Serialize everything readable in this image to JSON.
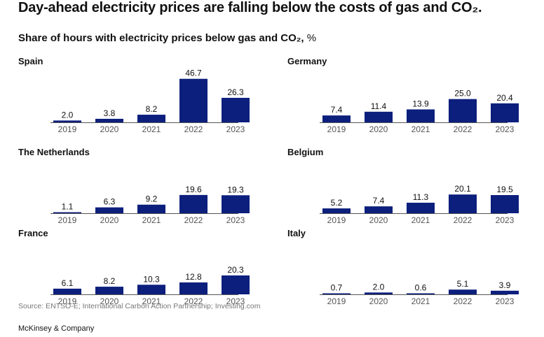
{
  "headline": "Day-ahead electricity prices are falling below the costs of gas and CO₂.",
  "colors": {
    "bar": "#0c1f7d",
    "axis": "#555555",
    "label": "#111111",
    "tick": "#555555"
  },
  "chart_data": [
    {
      "type": "bar",
      "title": "Spain",
      "subtitle": "Share of hours with electricity prices below gas and CO₂",
      "unit": "%",
      "categories": [
        "2019",
        "2020",
        "2021",
        "2022",
        "2023"
      ],
      "values": [
        2.0,
        3.8,
        8.2,
        46.7,
        26.3
      ],
      "ylim": [
        0,
        48
      ]
    },
    {
      "type": "bar",
      "title": "Germany",
      "subtitle": "Share of hours with electricity prices below gas and CO₂",
      "unit": "%",
      "categories": [
        "2019",
        "2020",
        "2021",
        "2022",
        "2023"
      ],
      "values": [
        7.4,
        11.4,
        13.9,
        25.0,
        20.4
      ],
      "ylim": [
        0,
        48
      ]
    },
    {
      "type": "bar",
      "title": "The Netherlands",
      "subtitle": "Share of hours with electricity prices below gas and CO₂",
      "unit": "%",
      "categories": [
        "2019",
        "2020",
        "2021",
        "2022",
        "2023"
      ],
      "values": [
        1.1,
        6.3,
        9.2,
        19.6,
        19.3
      ],
      "ylim": [
        0,
        48
      ]
    },
    {
      "type": "bar",
      "title": "Belgium",
      "subtitle": "Share of hours with electricity prices below gas and CO₂",
      "unit": "%",
      "categories": [
        "2019",
        "2020",
        "2021",
        "2022",
        "2023"
      ],
      "values": [
        5.2,
        7.4,
        11.3,
        20.1,
        19.5
      ],
      "ylim": [
        0,
        48
      ]
    },
    {
      "type": "bar",
      "title": "France",
      "subtitle": "Share of hours with electricity prices below gas and CO₂",
      "unit": "%",
      "categories": [
        "2019",
        "2020",
        "2021",
        "2022",
        "2023"
      ],
      "values": [
        6.1,
        8.2,
        10.3,
        12.8,
        20.3
      ],
      "ylim": [
        0,
        48
      ]
    },
    {
      "type": "bar",
      "title": "Italy",
      "subtitle": "Share of hours with electricity prices below gas and CO₂",
      "unit": "%",
      "categories": [
        "2019",
        "2020",
        "2021",
        "2022",
        "2023"
      ],
      "values": [
        0.7,
        2.0,
        0.6,
        5.1,
        3.9
      ],
      "ylim": [
        0,
        48
      ]
    }
  ],
  "subtitle": {
    "text": "Share of hours with electricity prices below gas and CO₂,",
    "unit": "%"
  },
  "source": "Source: ENTSO-E; International Carbon Action Partnership; Investing.com",
  "brand": "McKinsey & Company"
}
